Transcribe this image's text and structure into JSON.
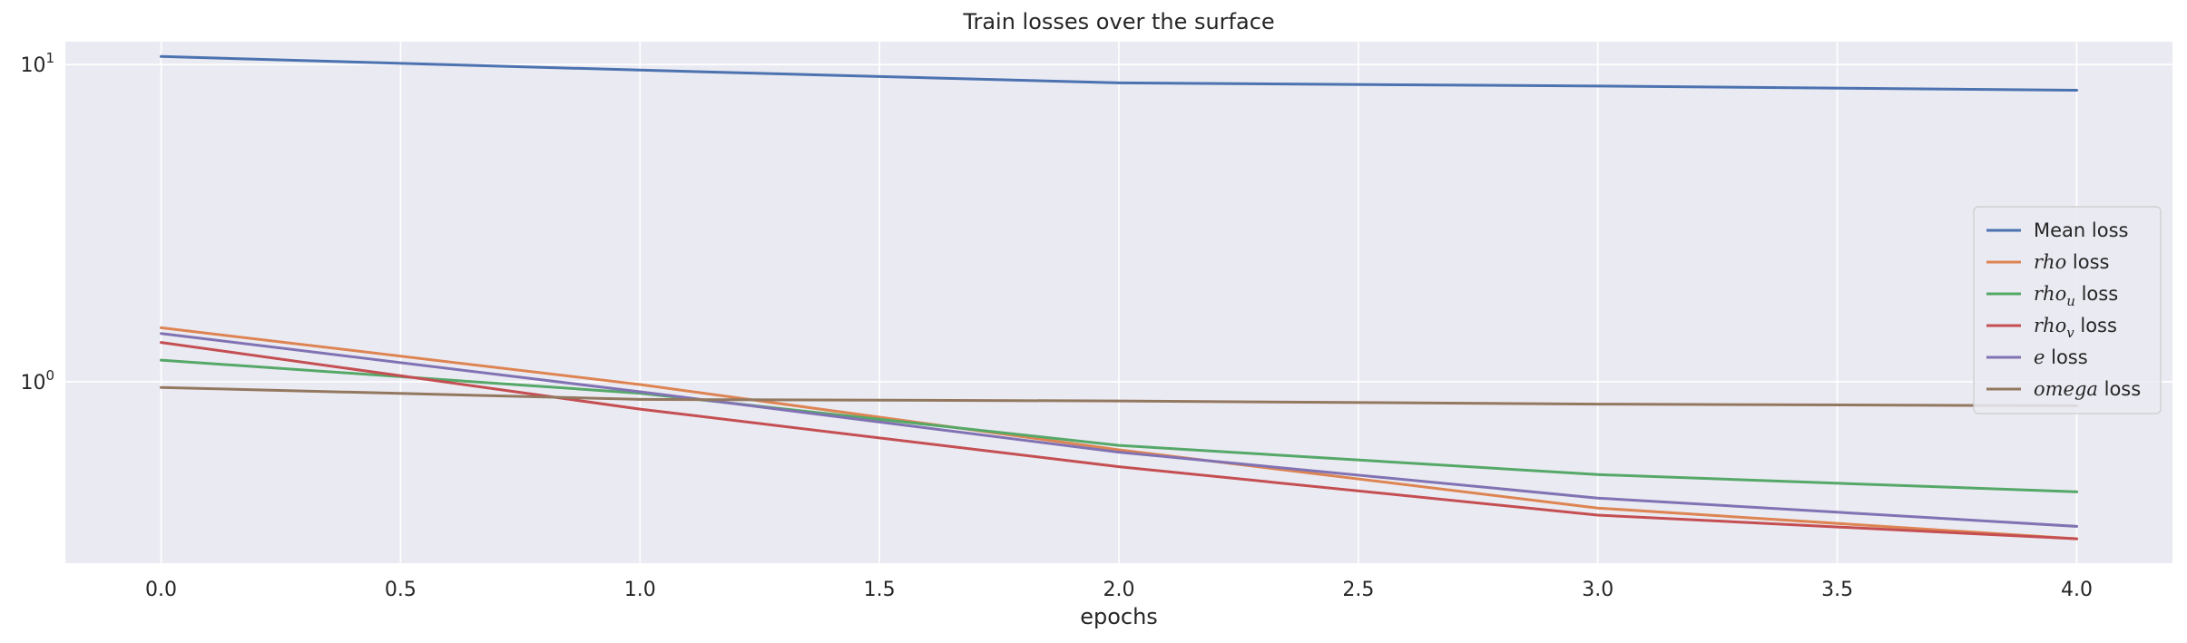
{
  "chart_data": {
    "type": "line",
    "title": "Train losses over the surface",
    "xlabel": "epochs",
    "ylabel": "",
    "yscale": "log",
    "xlim": [
      -0.2,
      4.2
    ],
    "ylim": [
      0.268,
      11.8
    ],
    "grid": true,
    "legend_position": "center-right",
    "x_ticks": [
      0.0,
      0.5,
      1.0,
      1.5,
      2.0,
      2.5,
      3.0,
      3.5,
      4.0
    ],
    "x_tick_labels": [
      "0.0",
      "0.5",
      "1.0",
      "1.5",
      "2.0",
      "2.5",
      "3.0",
      "3.5",
      "4.0"
    ],
    "y_ticks": [
      1,
      10
    ],
    "y_tick_labels": [
      {
        "base": "10",
        "exp": "0"
      },
      {
        "base": "10",
        "exp": "1"
      }
    ],
    "x": [
      0,
      1,
      2,
      3,
      4
    ],
    "series": [
      {
        "name": "Mean loss",
        "label": {
          "italic": "",
          "sub": "",
          "rest": "Mean loss"
        },
        "color": "#4c72b0",
        "values": [
          10.6,
          9.6,
          8.75,
          8.55,
          8.3
        ]
      },
      {
        "name": "rho loss",
        "label": {
          "italic": "rho",
          "sub": "",
          "rest": " loss"
        },
        "color": "#dd8452",
        "values": [
          1.48,
          0.98,
          0.61,
          0.4,
          0.32
        ]
      },
      {
        "name": "rho_u loss",
        "label": {
          "italic": "rho",
          "sub": "u",
          "rest": " loss"
        },
        "color": "#55a868",
        "values": [
          1.17,
          0.92,
          0.63,
          0.51,
          0.45
        ]
      },
      {
        "name": "rho_v loss",
        "label": {
          "italic": "rho",
          "sub": "v",
          "rest": " loss"
        },
        "color": "#c44e52",
        "values": [
          1.33,
          0.82,
          0.54,
          0.38,
          0.32
        ]
      },
      {
        "name": "e loss",
        "label": {
          "italic": "e",
          "sub": "",
          "rest": " loss"
        },
        "color": "#8172b3",
        "values": [
          1.42,
          0.93,
          0.6,
          0.43,
          0.35
        ]
      },
      {
        "name": "omega loss",
        "label": {
          "italic": "omega",
          "sub": "",
          "rest": " loss"
        },
        "color": "#937860",
        "values": [
          0.96,
          0.88,
          0.87,
          0.85,
          0.84
        ]
      }
    ]
  },
  "colors": {
    "plot_background": "#eaeaf2",
    "grid": "#ffffff",
    "text": "#262626"
  }
}
